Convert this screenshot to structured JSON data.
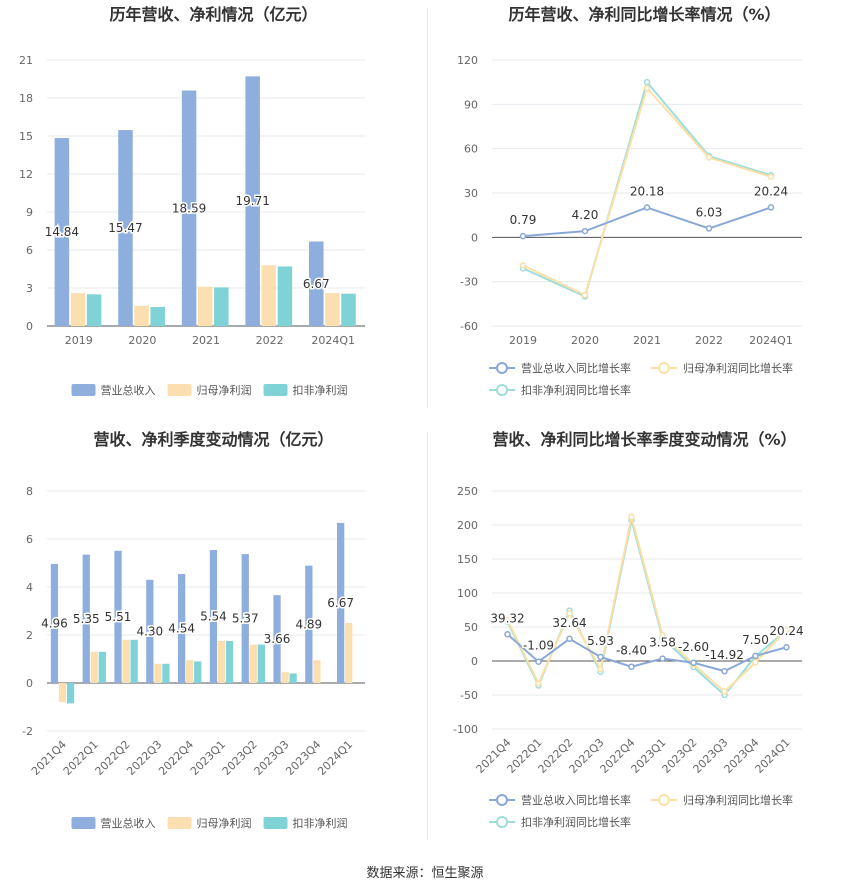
{
  "colors": {
    "revenue": "#8eaedd",
    "net_profit": "#fbdfb0",
    "deducted_profit": "#7fd3d6",
    "revenue_line": "#8aa8d6",
    "net_profit_line": "#fbe0a6",
    "deducted_line": "#9fdcdc"
  },
  "footer": "数据来源：恒生聚源",
  "chart_data": [
    {
      "type": "bar",
      "title": "历年营收、净利情况（亿元）",
      "categories": [
        "2019",
        "2020",
        "2021",
        "2022",
        "2024Q1"
      ],
      "ylim": [
        0,
        21
      ],
      "yticks": [
        0,
        3,
        6,
        9,
        12,
        15,
        18,
        21
      ],
      "grid": true,
      "legend_position": "bottom",
      "series": [
        {
          "name": "营业总收入",
          "values": [
            14.84,
            15.47,
            18.59,
            19.71,
            6.67
          ],
          "labels": [
            "14.84",
            "15.47",
            "18.59",
            "19.71",
            "6.67"
          ]
        },
        {
          "name": "归母净利润",
          "values": [
            2.6,
            1.6,
            3.1,
            4.8,
            2.6
          ]
        },
        {
          "name": "扣非净利润",
          "values": [
            2.5,
            1.5,
            3.05,
            4.7,
            2.55
          ]
        }
      ]
    },
    {
      "type": "line",
      "title": "历年营收、净利同比增长率情况（%）",
      "categories": [
        "2019",
        "2020",
        "2021",
        "2022",
        "2024Q1"
      ],
      "ylim": [
        -60,
        120
      ],
      "yticks": [
        -60,
        -30,
        0,
        30,
        60,
        90,
        120
      ],
      "grid": true,
      "legend_position": "bottom",
      "series": [
        {
          "name": "营业总收入同比增长率",
          "values": [
            0.79,
            4.2,
            20.18,
            6.03,
            20.24
          ],
          "labels": [
            "0.79",
            "4.20",
            "20.18",
            "6.03",
            "20.24"
          ]
        },
        {
          "name": "归母净利润同比增长率",
          "values": [
            -19,
            -39,
            101,
            54,
            41
          ]
        },
        {
          "name": "扣非净利润同比增长率",
          "values": [
            -21,
            -40,
            105,
            55,
            42
          ]
        }
      ]
    },
    {
      "type": "bar",
      "title": "营收、净利季度变动情况（亿元）",
      "categories": [
        "2021Q4",
        "2022Q1",
        "2022Q2",
        "2022Q3",
        "2022Q4",
        "2023Q1",
        "2023Q2",
        "2023Q3",
        "2023Q4",
        "2024Q1"
      ],
      "ylim": [
        -2,
        8
      ],
      "yticks": [
        -2,
        0,
        2,
        4,
        6,
        8
      ],
      "grid": true,
      "legend_position": "bottom",
      "series": [
        {
          "name": "营业总收入",
          "values": [
            4.96,
            5.35,
            5.51,
            4.3,
            4.54,
            5.54,
            5.37,
            3.66,
            4.89,
            6.67
          ],
          "labels": [
            "4.96",
            "5.35",
            "5.51",
            "4.30",
            "4.54",
            "5.54",
            "5.37",
            "3.66",
            "4.89",
            "6.67"
          ]
        },
        {
          "name": "归母净利润",
          "values": [
            -0.8,
            1.3,
            1.8,
            0.8,
            0.95,
            1.75,
            1.6,
            0.45,
            0.95,
            2.5
          ]
        },
        {
          "name": "扣非净利润",
          "values": [
            -0.85,
            1.3,
            1.8,
            0.8,
            0.9,
            1.75,
            1.6,
            0.4,
            0.0,
            0.0
          ]
        }
      ]
    },
    {
      "type": "line",
      "title": "营收、净利同比增长率季度变动情况（%）",
      "categories": [
        "2021Q4",
        "2022Q1",
        "2022Q2",
        "2022Q3",
        "2022Q4",
        "2023Q1",
        "2023Q2",
        "2023Q3",
        "2023Q4",
        "2024Q1"
      ],
      "ylim": [
        -100,
        250
      ],
      "yticks": [
        -100,
        -50,
        0,
        50,
        100,
        150,
        200,
        250
      ],
      "grid": true,
      "legend_position": "bottom",
      "series": [
        {
          "name": "营业总收入同比增长率",
          "values": [
            39.32,
            -1.09,
            32.64,
            5.93,
            -8.4,
            3.58,
            -2.6,
            -14.92,
            7.5,
            20.24
          ],
          "labels": [
            "39.32",
            "-1.09",
            "32.64",
            "5.93",
            "-8.40",
            "3.58",
            "-2.60",
            "-14.92",
            "7.50",
            "20.24"
          ]
        },
        {
          "name": "归母净利润同比增长率",
          "values": [
            60,
            -33,
            70,
            -12,
            212,
            38,
            -5,
            -45,
            -2,
            46
          ]
        },
        {
          "name": "扣非净利润同比增长率",
          "values": [
            58,
            -36,
            74,
            -16,
            207,
            34,
            -9,
            -50,
            7,
            45
          ]
        }
      ]
    }
  ]
}
